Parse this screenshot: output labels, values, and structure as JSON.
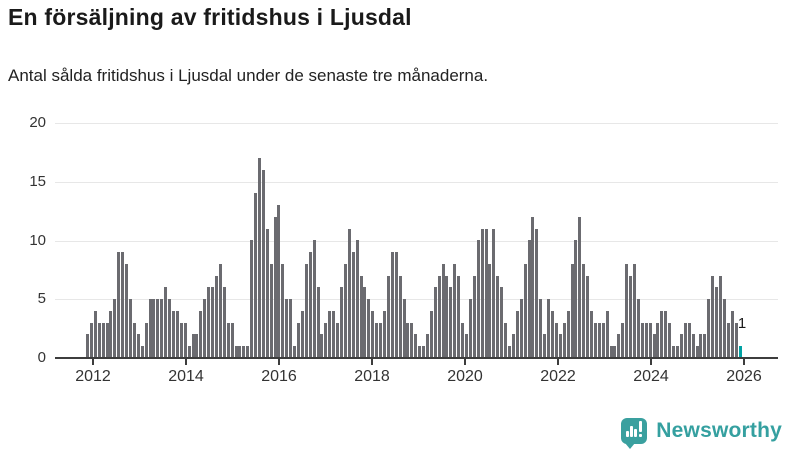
{
  "title": "En försäljning av fritidshus i Ljusdal",
  "subtitle": "Antal sålda fritidshus i Ljusdal under de senaste tre månaderna.",
  "logo": {
    "text": "Newsworthy",
    "icon": "newsworthy-speech-bubble-chart-icon"
  },
  "colors": {
    "bar": "#6b6b70",
    "highlight": "#00a2a4",
    "axis": "#3d3d3d",
    "grid": "#e7e7e7",
    "brand": "#35a0a0"
  },
  "chart_data": {
    "type": "bar",
    "title": "En försäljning av fritidshus i Ljusdal",
    "subtitle": "Antal sålda fritidshus i Ljusdal under de senaste tre månaderna.",
    "x_tick_labels": [
      "2012",
      "2014",
      "2016",
      "2018",
      "2020",
      "2022",
      "2024",
      "2026"
    ],
    "y_ticks": [
      0,
      5,
      10,
      15,
      20
    ],
    "ylim": [
      0,
      20
    ],
    "grid": "horizontal",
    "legend": "none",
    "x_range_months": "late 2011 to early 2026, one bar per month",
    "values": [
      2,
      3,
      4,
      3,
      3,
      3,
      4,
      5,
      9,
      9,
      8,
      5,
      3,
      2,
      1,
      3,
      5,
      5,
      5,
      5,
      6,
      5,
      4,
      4,
      3,
      3,
      1,
      2,
      2,
      4,
      5,
      6,
      6,
      7,
      8,
      6,
      3,
      3,
      1,
      1,
      1,
      1,
      10,
      14,
      17,
      16,
      11,
      8,
      12,
      13,
      8,
      5,
      5,
      1,
      3,
      4,
      8,
      9,
      10,
      6,
      2,
      3,
      4,
      4,
      3,
      6,
      8,
      11,
      9,
      10,
      7,
      6,
      5,
      4,
      3,
      3,
      4,
      7,
      9,
      9,
      7,
      5,
      3,
      3,
      2,
      1,
      1,
      2,
      4,
      6,
      7,
      8,
      7,
      6,
      8,
      7,
      3,
      2,
      5,
      7,
      10,
      11,
      11,
      8,
      11,
      7,
      6,
      3,
      1,
      2,
      4,
      5,
      8,
      10,
      12,
      11,
      5,
      2,
      5,
      4,
      3,
      2,
      3,
      4,
      8,
      10,
      12,
      8,
      7,
      4,
      3,
      3,
      3,
      4,
      1,
      1,
      2,
      3,
      8,
      7,
      8,
      5,
      3,
      3,
      3,
      2,
      3,
      4,
      4,
      3,
      1,
      1,
      2,
      3,
      3,
      2,
      1,
      2,
      2,
      5,
      7,
      6,
      7,
      5,
      3,
      4,
      3,
      1
    ],
    "highlight_last_bar": true,
    "last_value_label": "1"
  }
}
